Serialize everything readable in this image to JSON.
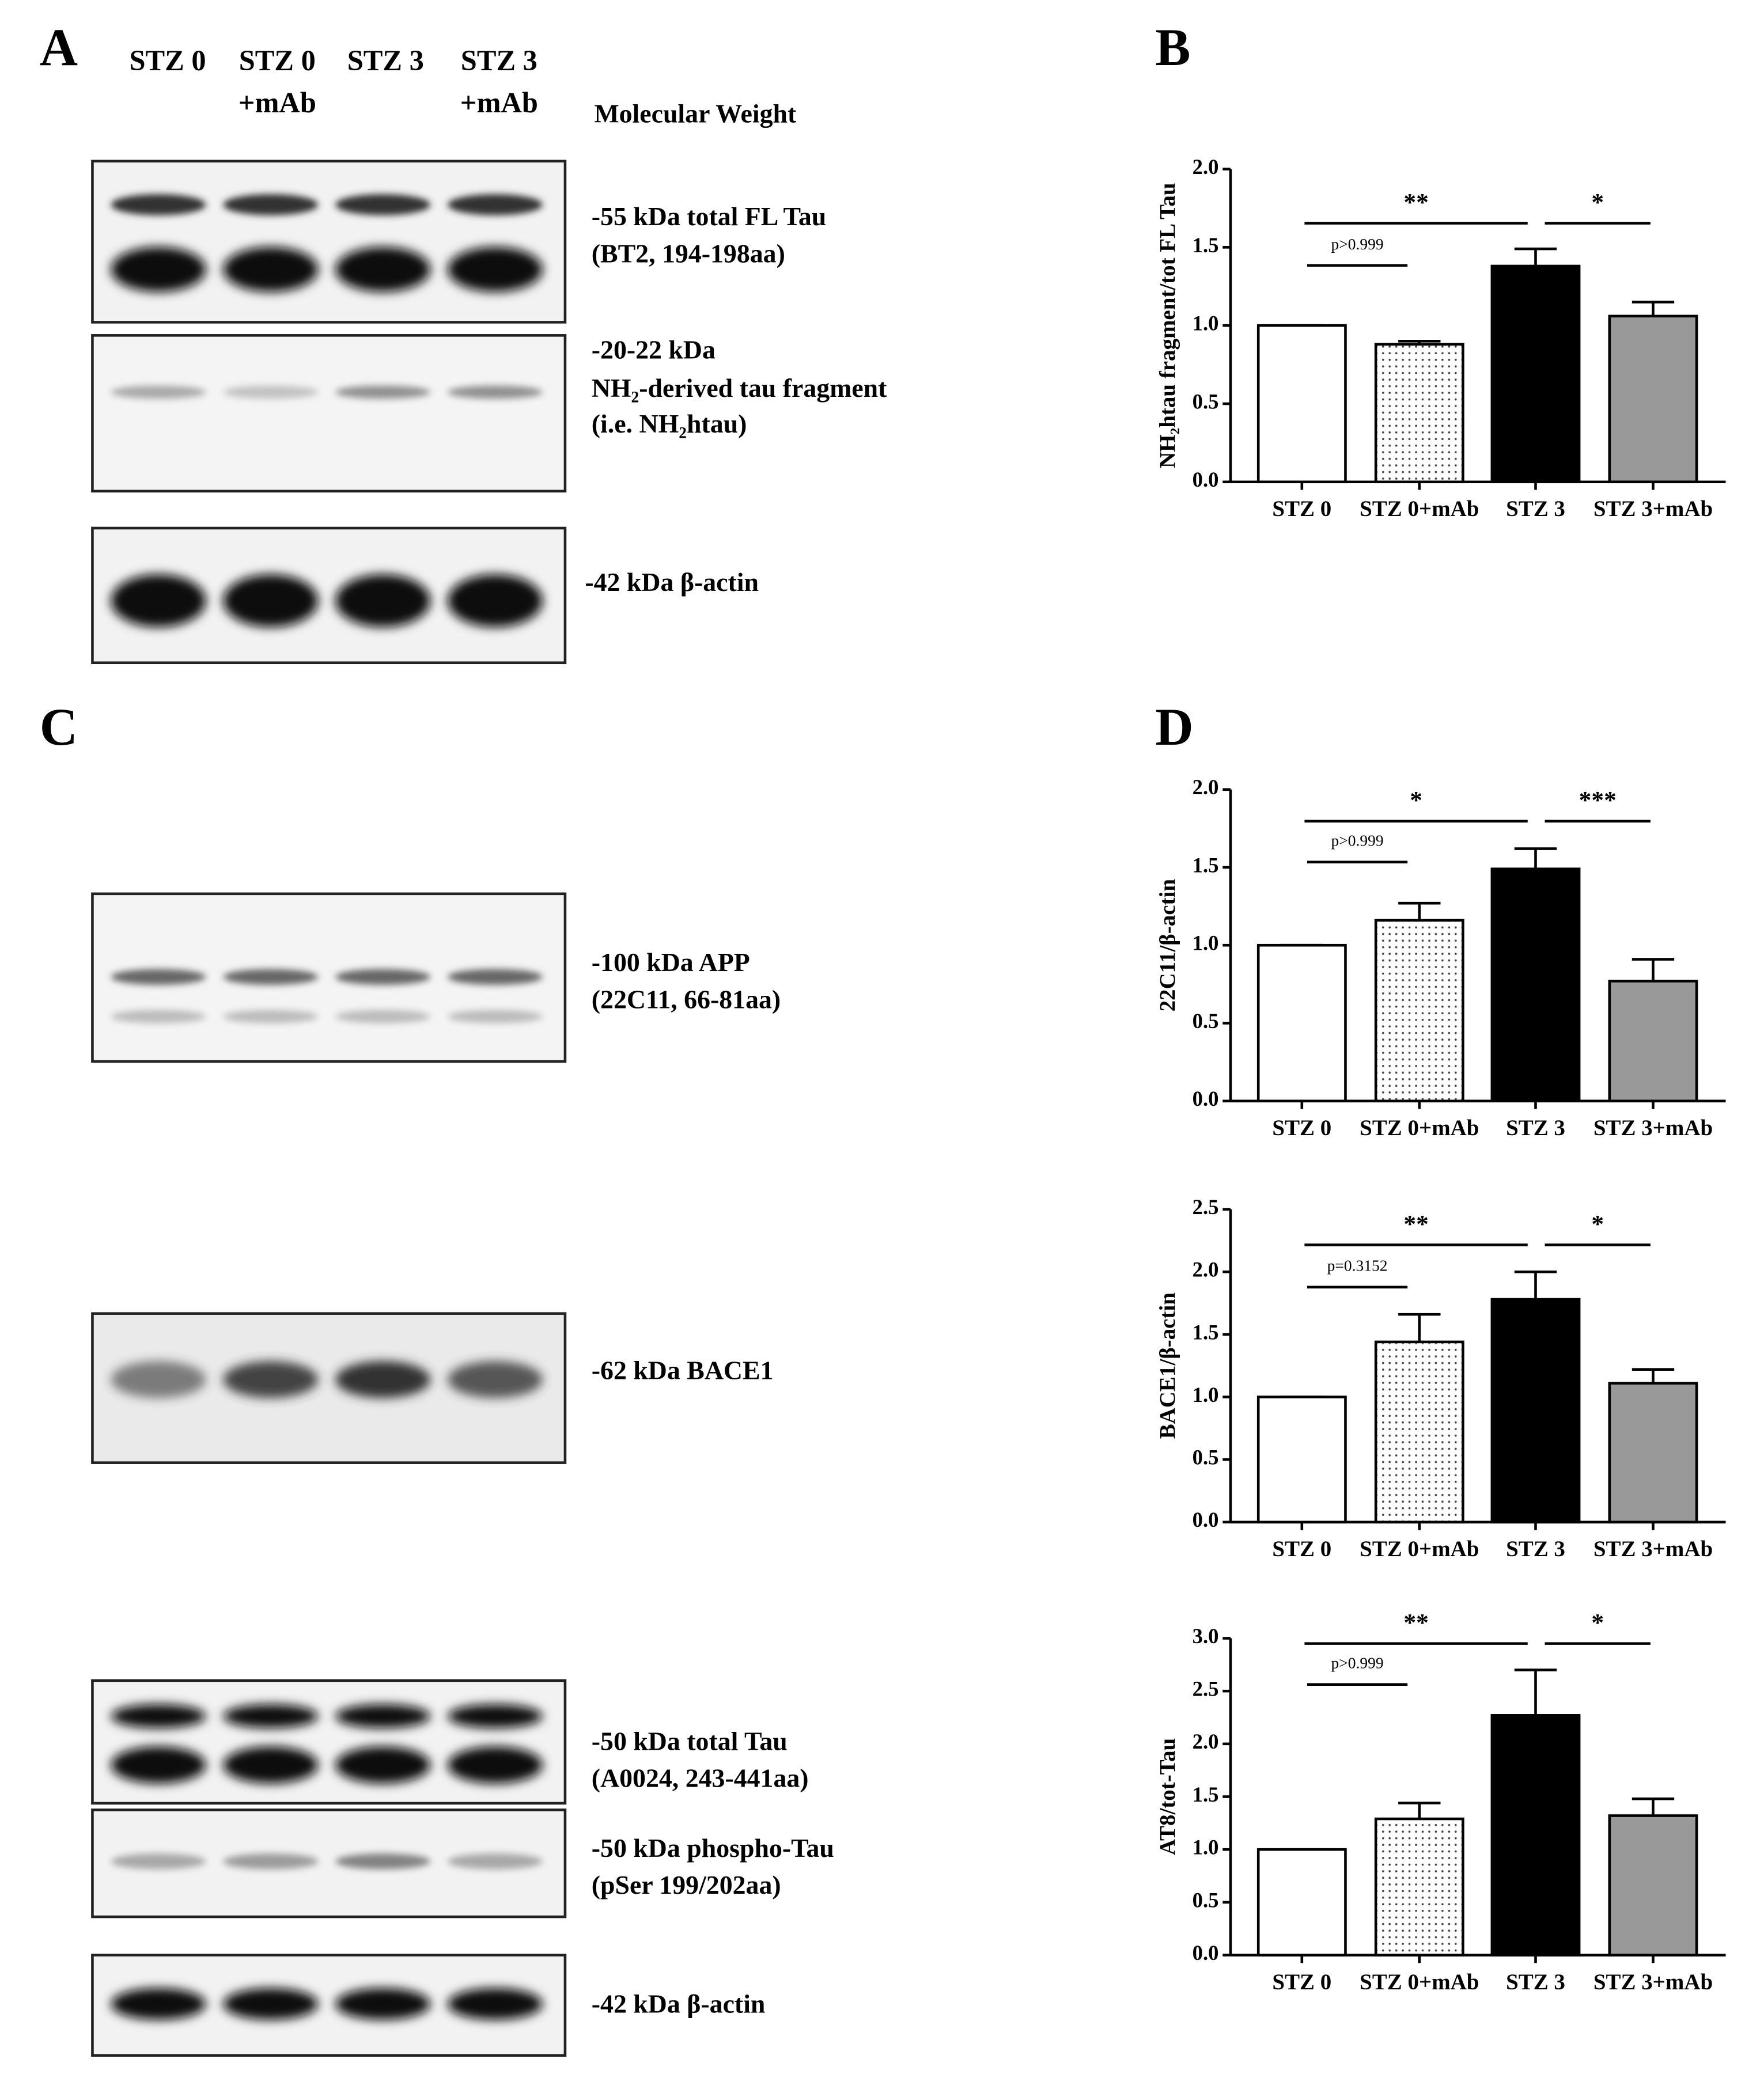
{
  "panel_labels": [
    "A",
    "B",
    "C",
    "D"
  ],
  "lane_headers": [
    [
      "STZ 0"
    ],
    [
      "STZ 0",
      "+mAb"
    ],
    [
      "STZ 3"
    ],
    [
      "STZ 3",
      "+mAb"
    ]
  ],
  "molecular_weight_label": "Molecular Weight",
  "blot_labels_A": [
    [
      "-55 kDa total FL Tau",
      "(BT2, 194-198aa)"
    ],
    [
      "-20-22 kDa",
      "NH₂-derived tau fragment",
      "(i.e. NH₂htau)"
    ],
    [
      "-42 kDa β-actin"
    ]
  ],
  "blot_labels_C": [
    [
      "-100 kDa APP",
      "(22C11, 66-81aa)"
    ],
    [
      "-62 kDa BACE1"
    ],
    [
      "-50 kDa total Tau",
      "(A0024, 243-441aa)"
    ],
    [
      "-50 kDa phospho-Tau",
      "(pSer 199/202aa)"
    ],
    [
      "-42 kDa β-actin"
    ]
  ],
  "chart_data": [
    {
      "type": "bar",
      "ylabel": "NH₂htau fragment/tot FL Tau",
      "categories": [
        "STZ 0",
        "STZ 0+mAb",
        "STZ 3",
        "STZ 3+mAb"
      ],
      "values": [
        1.0,
        0.88,
        1.38,
        1.06
      ],
      "errors": [
        0,
        0.02,
        0.11,
        0.09
      ],
      "colors": [
        "#ffffff",
        "#ffffff",
        "#000000",
        "#999999"
      ],
      "ylim": [
        0,
        2
      ],
      "yticks": [
        {
          "value": 0,
          "label": "0.0"
        },
        {
          "value": 0.5,
          "label": "0.5"
        },
        {
          "value": 1,
          "label": "1.0"
        },
        {
          "value": 1.5,
          "label": "1.5"
        },
        {
          "value": 2,
          "label": "2.0"
        }
      ],
      "annotations": [
        "**",
        "*",
        "p>0.999"
      ]
    },
    {
      "type": "bar",
      "ylabel": "22C11/β-actin",
      "categories": [
        "STZ 0",
        "STZ 0+mAb",
        "STZ 3",
        "STZ 3+mAb"
      ],
      "values": [
        1.0,
        1.16,
        1.49,
        0.77
      ],
      "errors": [
        0,
        0.11,
        0.13,
        0.14
      ],
      "colors": [
        "#ffffff",
        "#ffffff",
        "#000000",
        "#999999"
      ],
      "ylim": [
        0,
        2
      ],
      "yticks": [
        {
          "value": 0,
          "label": "0.0"
        },
        {
          "value": 0.5,
          "label": "0.5"
        },
        {
          "value": 1,
          "label": "1.0"
        },
        {
          "value": 1.5,
          "label": "1.5"
        },
        {
          "value": 2,
          "label": "2.0"
        }
      ],
      "annotations": [
        "*",
        "***",
        "p>0.999"
      ]
    },
    {
      "type": "bar",
      "ylabel": "BACE1/β-actin",
      "categories": [
        "STZ 0",
        "STZ 0+mAb",
        "STZ 3",
        "STZ 3+mAb"
      ],
      "values": [
        1.0,
        1.44,
        1.78,
        1.11
      ],
      "errors": [
        0,
        0.22,
        0.22,
        0.11
      ],
      "colors": [
        "#ffffff",
        "#ffffff",
        "#000000",
        "#999999"
      ],
      "ylim": [
        0,
        2.5
      ],
      "yticks": [
        {
          "value": 0,
          "label": "0.0"
        },
        {
          "value": 0.5,
          "label": "0.5"
        },
        {
          "value": 1,
          "label": "1.0"
        },
        {
          "value": 1.5,
          "label": "1.5"
        },
        {
          "value": 2,
          "label": "2.0"
        },
        {
          "value": 2.5,
          "label": "2.5"
        }
      ],
      "annotations": [
        "**",
        "*",
        "p=0.3152"
      ]
    },
    {
      "type": "bar",
      "ylabel": "AT8/tot-Tau",
      "categories": [
        "STZ 0",
        "STZ 0+mAb",
        "STZ 3",
        "STZ 3+mAb"
      ],
      "values": [
        1.0,
        1.29,
        2.27,
        1.32
      ],
      "errors": [
        0,
        0.15,
        0.43,
        0.16
      ],
      "colors": [
        "#ffffff",
        "#ffffff",
        "#000000",
        "#999999"
      ],
      "ylim": [
        0,
        3
      ],
      "yticks": [
        {
          "value": 0,
          "label": "0.0"
        },
        {
          "value": 0.5,
          "label": "0.5"
        },
        {
          "value": 1,
          "label": "1.0"
        },
        {
          "value": 1.5,
          "label": "1.5"
        },
        {
          "value": 2,
          "label": "2.0"
        },
        {
          "value": 2.5,
          "label": "2.5"
        },
        {
          "value": 3,
          "label": "3.0"
        }
      ],
      "annotations": [
        "**",
        "*",
        "p>0.999"
      ]
    }
  ]
}
